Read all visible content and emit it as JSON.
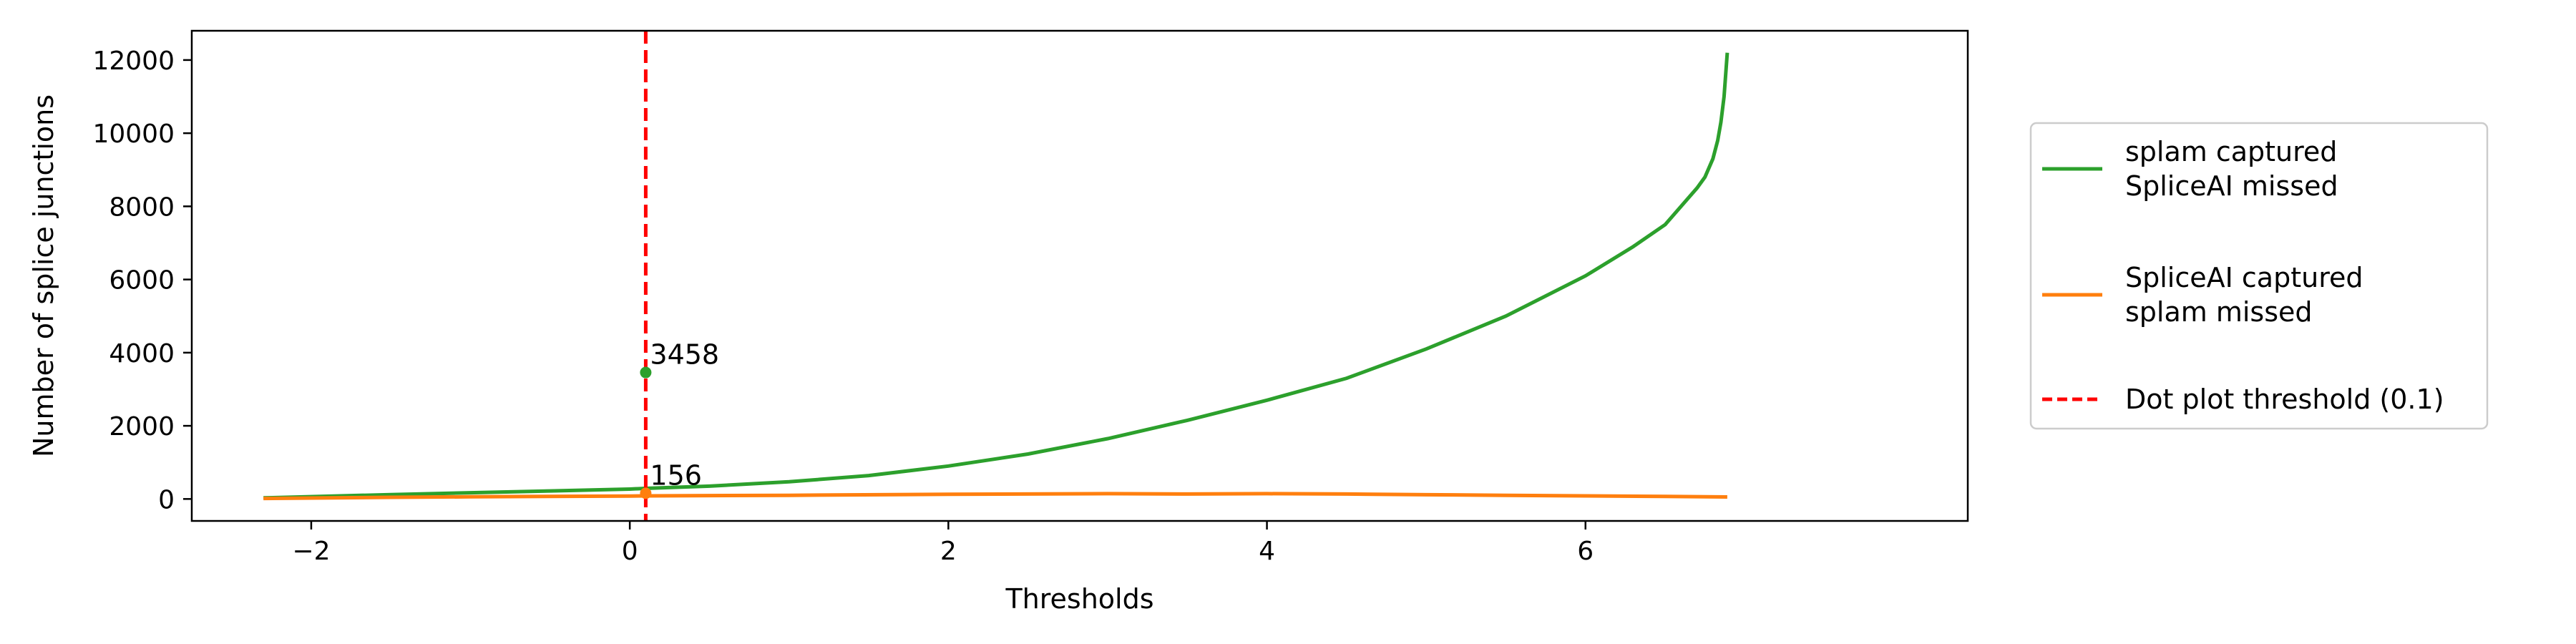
{
  "chart_data": {
    "type": "line",
    "title": "",
    "xlabel": "Thresholds",
    "ylabel": "Number of splice junctions",
    "xlim": [
      -2.75,
      8.4
    ],
    "ylim": [
      -600,
      12800
    ],
    "xticks": [
      -2,
      0,
      2,
      4,
      6
    ],
    "yticks": [
      0,
      2000,
      4000,
      6000,
      8000,
      10000,
      12000
    ],
    "grid": false,
    "legend_position": "right, outside plot",
    "series": [
      {
        "name": "splam captured\nSpliceAI missed",
        "color": "#2ca02c",
        "points": [
          [
            -2.3,
            30
          ],
          [
            -1.5,
            120
          ],
          [
            -1.0,
            170
          ],
          [
            -0.5,
            220
          ],
          [
            0.0,
            270
          ],
          [
            0.1,
            290
          ],
          [
            0.5,
            350
          ],
          [
            1.0,
            470
          ],
          [
            1.5,
            640
          ],
          [
            2.0,
            900
          ],
          [
            2.5,
            1230
          ],
          [
            3.0,
            1650
          ],
          [
            3.5,
            2150
          ],
          [
            4.0,
            2700
          ],
          [
            4.5,
            3300
          ],
          [
            5.0,
            4100
          ],
          [
            5.5,
            5000
          ],
          [
            6.0,
            6100
          ],
          [
            6.3,
            6900
          ],
          [
            6.5,
            7500
          ],
          [
            6.6,
            8000
          ],
          [
            6.7,
            8500
          ],
          [
            6.75,
            8800
          ],
          [
            6.8,
            9300
          ],
          [
            6.83,
            9800
          ],
          [
            6.85,
            10300
          ],
          [
            6.87,
            11000
          ],
          [
            6.89,
            12200
          ]
        ]
      },
      {
        "name": "SpliceAI captured\nsplam missed",
        "color": "#ff7f0e",
        "points": [
          [
            -2.3,
            15
          ],
          [
            -1.5,
            45
          ],
          [
            -1.0,
            60
          ],
          [
            0.0,
            80
          ],
          [
            0.1,
            85
          ],
          [
            1.0,
            100
          ],
          [
            2.0,
            130
          ],
          [
            3.0,
            145
          ],
          [
            3.5,
            135
          ],
          [
            4.0,
            145
          ],
          [
            4.5,
            135
          ],
          [
            5.0,
            115
          ],
          [
            5.5,
            100
          ],
          [
            6.0,
            85
          ],
          [
            6.5,
            70
          ],
          [
            6.89,
            55
          ]
        ]
      }
    ],
    "threshold_line": {
      "x": 0.1,
      "label": "Dot plot threshold (0.1)",
      "color": "#ff0000"
    },
    "annotations": [
      {
        "x": 0.1,
        "y": 3458,
        "text": "3458",
        "color": "#2ca02c"
      },
      {
        "x": 0.1,
        "y": 156,
        "text": "156",
        "color": "#ff7f0e"
      }
    ]
  }
}
